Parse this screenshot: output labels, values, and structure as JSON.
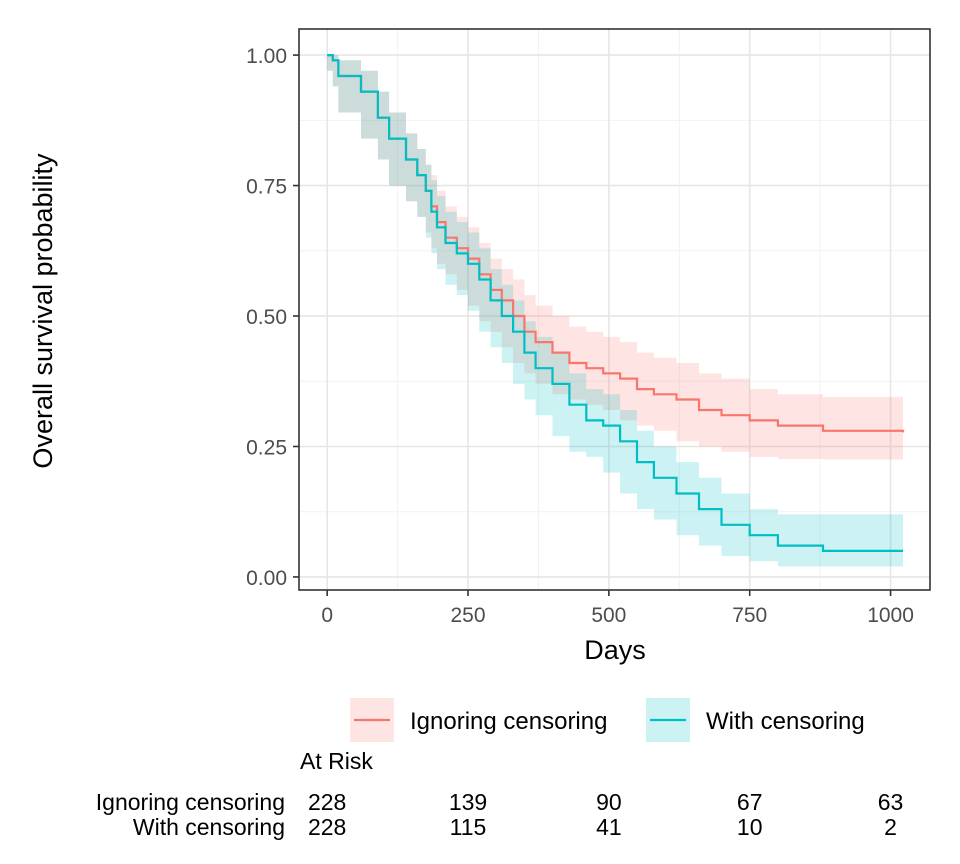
{
  "chart_data": {
    "type": "line",
    "xlabel": "Days",
    "ylabel": "Overall survival probability",
    "xlim": [
      -50,
      1070
    ],
    "ylim": [
      -0.025,
      1.05
    ],
    "xticks": [
      0,
      250,
      500,
      750,
      1000
    ],
    "xtick_labels": [
      "0",
      "250",
      "500",
      "750",
      "1000"
    ],
    "yticks": [
      0,
      0.25,
      0.5,
      0.75,
      1.0
    ],
    "ytick_labels": [
      "0.00",
      "0.25",
      "0.50",
      "0.75",
      "1.00"
    ],
    "grid": true,
    "legend_position": "bottom",
    "series": [
      {
        "name": "Ignoring censoring",
        "color": "#F8766D",
        "x": [
          0,
          10,
          20,
          60,
          90,
          110,
          140,
          160,
          175,
          185,
          195,
          210,
          230,
          250,
          270,
          290,
          310,
          330,
          350,
          370,
          400,
          430,
          460,
          490,
          520,
          550,
          580,
          620,
          660,
          700,
          750,
          800,
          880,
          1022
        ],
        "y": [
          1.0,
          0.99,
          0.96,
          0.93,
          0.88,
          0.84,
          0.8,
          0.77,
          0.74,
          0.71,
          0.68,
          0.65,
          0.63,
          0.61,
          0.58,
          0.55,
          0.53,
          0.5,
          0.47,
          0.45,
          0.43,
          0.41,
          0.4,
          0.39,
          0.38,
          0.36,
          0.35,
          0.34,
          0.32,
          0.31,
          0.3,
          0.29,
          0.28,
          0.277
        ],
        "lower": [
          1.0,
          0.97,
          0.94,
          0.89,
          0.84,
          0.8,
          0.75,
          0.72,
          0.69,
          0.66,
          0.63,
          0.6,
          0.58,
          0.55,
          0.52,
          0.49,
          0.47,
          0.44,
          0.41,
          0.39,
          0.37,
          0.35,
          0.34,
          0.33,
          0.32,
          0.3,
          0.29,
          0.28,
          0.26,
          0.25,
          0.24,
          0.23,
          0.226,
          0.225
        ],
        "upper": [
          1.0,
          1.0,
          0.99,
          0.97,
          0.93,
          0.89,
          0.85,
          0.82,
          0.79,
          0.77,
          0.74,
          0.71,
          0.69,
          0.67,
          0.64,
          0.61,
          0.59,
          0.57,
          0.54,
          0.52,
          0.5,
          0.48,
          0.47,
          0.46,
          0.45,
          0.43,
          0.42,
          0.41,
          0.39,
          0.38,
          0.36,
          0.35,
          0.345,
          0.34
        ]
      },
      {
        "name": "With censoring",
        "color": "#00BFC4",
        "x": [
          0,
          10,
          20,
          60,
          90,
          110,
          140,
          160,
          175,
          185,
          195,
          210,
          230,
          250,
          270,
          290,
          310,
          330,
          350,
          370,
          400,
          430,
          460,
          490,
          520,
          550,
          580,
          620,
          660,
          700,
          750,
          800,
          880,
          1022
        ],
        "y": [
          1.0,
          0.99,
          0.96,
          0.93,
          0.88,
          0.84,
          0.8,
          0.77,
          0.74,
          0.7,
          0.67,
          0.64,
          0.62,
          0.6,
          0.57,
          0.53,
          0.5,
          0.47,
          0.43,
          0.4,
          0.37,
          0.33,
          0.3,
          0.29,
          0.26,
          0.22,
          0.19,
          0.16,
          0.13,
          0.1,
          0.08,
          0.06,
          0.05,
          0.05
        ],
        "lower": [
          1.0,
          0.97,
          0.94,
          0.89,
          0.84,
          0.8,
          0.75,
          0.72,
          0.69,
          0.65,
          0.62,
          0.59,
          0.56,
          0.54,
          0.51,
          0.47,
          0.44,
          0.41,
          0.37,
          0.34,
          0.31,
          0.27,
          0.24,
          0.23,
          0.2,
          0.16,
          0.13,
          0.11,
          0.08,
          0.06,
          0.04,
          0.03,
          0.02,
          0.02
        ],
        "upper": [
          1.0,
          1.0,
          0.99,
          0.97,
          0.93,
          0.89,
          0.85,
          0.82,
          0.79,
          0.76,
          0.73,
          0.7,
          0.68,
          0.66,
          0.63,
          0.59,
          0.56,
          0.53,
          0.49,
          0.46,
          0.43,
          0.39,
          0.36,
          0.35,
          0.32,
          0.28,
          0.25,
          0.22,
          0.19,
          0.16,
          0.13,
          0.12,
          0.12,
          0.12
        ]
      }
    ],
    "risk_table": {
      "title": "At Risk",
      "times": [
        0,
        250,
        500,
        750,
        1000
      ],
      "rows": [
        {
          "label": "Ignoring censoring",
          "values": [
            "228",
            "139",
            "90",
            "67",
            "63"
          ]
        },
        {
          "label": "With censoring",
          "values": [
            "228",
            "115",
            "41",
            "10",
            "2"
          ]
        }
      ]
    }
  }
}
